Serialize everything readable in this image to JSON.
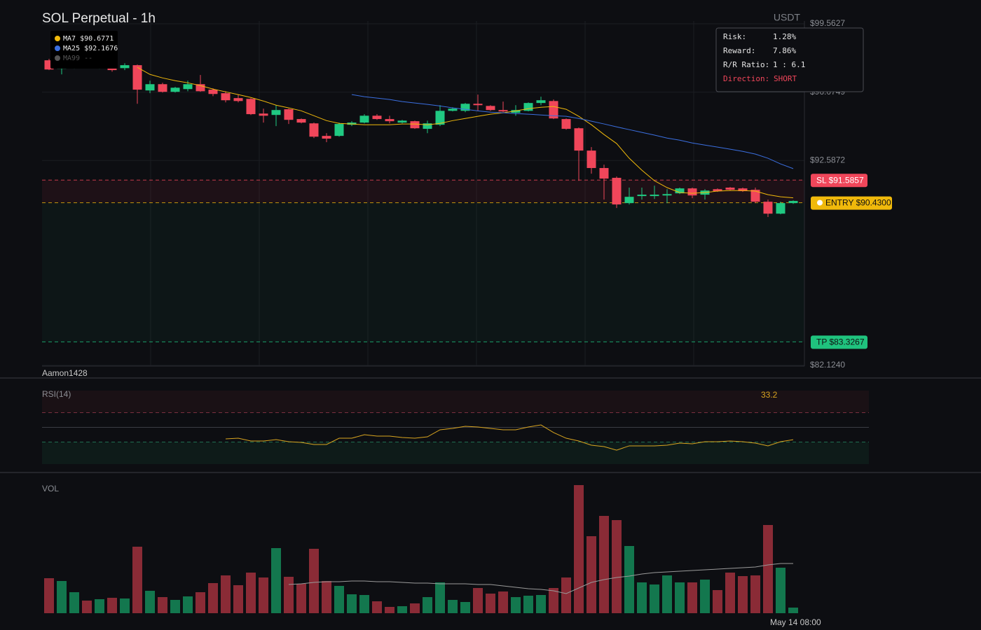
{
  "header": {
    "title": "SOL Perpetual - 1h",
    "currency": "USDT",
    "watermark": "Aamon1428",
    "time_label": "May 14 08:00"
  },
  "legend": [
    {
      "text": "MA7 $90.6771",
      "color": "#f0b90b"
    },
    {
      "text": "MA25 $92.1676",
      "color": "#3b6fe0"
    },
    {
      "text": "MA99 --",
      "color": "#555555"
    }
  ],
  "info": [
    {
      "label": "Risk:",
      "value": "1.28%"
    },
    {
      "label": "Reward:",
      "value": "7.86%"
    },
    {
      "label": "R/R Ratio:",
      "value": "1 : 6.1"
    },
    {
      "label": "Direction:",
      "value": "SHORT"
    }
  ],
  "chart_data": [
    {
      "type": "candlestick",
      "up_color": "#20c982",
      "down_color": "#f0465a",
      "open": [
        97.7,
        97.27,
        97.34,
        97.37,
        97.34,
        97.37,
        97.3,
        97.45,
        96.16,
        96.48,
        96.09,
        96.23,
        96.48,
        96.2,
        96.02,
        95.77,
        95.73,
        94.98,
        94.91,
        95.2,
        94.7,
        94.48,
        93.84,
        93.84,
        94.41,
        94.52,
        94.87,
        94.7,
        94.52,
        94.59,
        94.2,
        94.41,
        95.12,
        95.12,
        95.48,
        95.37,
        95.16,
        95.02,
        95.12,
        95.52,
        95.62,
        94.7,
        94.23,
        93.09,
        92.2,
        91.7,
        90.41,
        90.77,
        90.77,
        90.8,
        90.91,
        91.16,
        90.84,
        91.12,
        91.2,
        91.16,
        91.09,
        90.48,
        89.87,
        90.41
      ],
      "high": [
        97.77,
        97.41,
        97.45,
        97.45,
        97.41,
        97.45,
        97.55,
        97.48,
        96.66,
        96.55,
        96.34,
        96.66,
        96.95,
        96.27,
        96.12,
        95.95,
        95.77,
        95.23,
        95.41,
        95.23,
        94.73,
        94.52,
        93.98,
        94.52,
        94.59,
        94.95,
        94.95,
        94.87,
        94.66,
        94.62,
        94.62,
        95.41,
        95.3,
        95.52,
        95.95,
        95.41,
        95.59,
        95.41,
        95.55,
        95.84,
        95.7,
        94.73,
        94.27,
        93.27,
        92.37,
        91.77,
        91.2,
        91.2,
        91.3,
        91.12,
        91.2,
        91.2,
        91.12,
        91.16,
        91.23,
        91.2,
        91.2,
        90.59,
        90.48,
        90.55
      ],
      "low": [
        97.2,
        96.98,
        97.27,
        97.3,
        97.27,
        97.12,
        97.2,
        95.48,
        96.02,
        96.05,
        96.05,
        96.12,
        96.09,
        95.87,
        95.55,
        95.55,
        94.91,
        94.52,
        94.34,
        94.45,
        94.48,
        93.73,
        93.52,
        93.8,
        94.34,
        94.48,
        94.66,
        94.48,
        94.48,
        94.2,
        93.98,
        94.34,
        95.09,
        95.05,
        95.12,
        95.12,
        95.05,
        94.87,
        95.09,
        95.41,
        94.7,
        94.16,
        91.55,
        91.91,
        90.59,
        90.16,
        90.34,
        90.59,
        90.62,
        90.41,
        90.87,
        90.66,
        90.59,
        90.98,
        91.05,
        90.98,
        90.41,
        89.7,
        89.84,
        90.37
      ],
      "close": [
        97.23,
        97.34,
        97.37,
        97.34,
        97.37,
        97.2,
        97.45,
        96.2,
        96.48,
        96.09,
        96.3,
        96.48,
        96.12,
        95.98,
        95.66,
        95.62,
        94.95,
        94.87,
        95.16,
        94.66,
        94.52,
        93.8,
        93.7,
        94.45,
        94.52,
        94.87,
        94.7,
        94.59,
        94.62,
        94.23,
        94.48,
        95.12,
        95.23,
        95.48,
        95.41,
        95.16,
        95.09,
        95.16,
        95.52,
        95.66,
        94.73,
        94.2,
        93.09,
        92.2,
        91.66,
        90.34,
        90.73,
        90.84,
        90.84,
        90.87,
        91.16,
        90.8,
        91.05,
        91.02,
        91.09,
        91.02,
        90.48,
        89.87,
        90.41,
        90.52
      ],
      "lines": [
        {
          "color": "#f0b90b",
          "values": [
            null,
            null,
            null,
            null,
            null,
            null,
            null,
            97.34,
            96.98,
            96.8,
            96.66,
            96.55,
            96.41,
            96.23,
            96.09,
            95.95,
            95.8,
            95.62,
            95.41,
            95.27,
            95.12,
            94.87,
            94.62,
            94.48,
            94.45,
            94.41,
            94.41,
            94.41,
            94.45,
            94.45,
            94.41,
            94.48,
            94.62,
            94.73,
            94.84,
            94.95,
            95.02,
            95.12,
            95.23,
            95.3,
            95.34,
            95.2,
            94.84,
            94.41,
            93.91,
            93.45,
            92.7,
            92.09,
            91.55,
            91.2,
            90.95,
            90.91,
            90.95,
            91.02,
            91.05,
            91.05,
            91.02,
            90.84,
            90.73,
            90.68
          ]
        },
        {
          "color": "#3b6fe0",
          "values": [
            null,
            null,
            null,
            null,
            null,
            null,
            null,
            null,
            null,
            null,
            null,
            null,
            null,
            null,
            null,
            null,
            null,
            null,
            null,
            null,
            null,
            null,
            null,
            null,
            95.95,
            95.84,
            95.77,
            95.7,
            95.59,
            95.52,
            95.45,
            95.37,
            95.27,
            95.2,
            95.12,
            95.05,
            95.02,
            94.98,
            94.95,
            94.91,
            94.87,
            94.84,
            94.73,
            94.59,
            94.45,
            94.3,
            94.16,
            94.02,
            93.88,
            93.73,
            93.62,
            93.48,
            93.37,
            93.27,
            93.16,
            93.05,
            92.91,
            92.7,
            92.41,
            92.17
          ]
        }
      ],
      "ylim": [
        82.124,
        99.5627
      ],
      "yticks": [
        {
          "value": 99.5627,
          "label": "$99.5627"
        },
        {
          "value": 96.0749,
          "label": "$96.0749"
        },
        {
          "value": 92.5872,
          "label": "$92.5872"
        },
        {
          "value": 82.124,
          "label": "$82.1240"
        }
      ],
      "levels": [
        {
          "label": "SL $91.5857",
          "value": 91.5857,
          "color": "#f0465a"
        },
        {
          "label": "ENTRY $90.4300",
          "value": 90.43,
          "color": "#f0b90b"
        },
        {
          "label": "TP $83.3267",
          "value": 83.3267,
          "color": "#1fc37e"
        }
      ]
    },
    {
      "type": "line",
      "title": "RSI(14)",
      "color": "#d9a520",
      "last_value": 33.2,
      "ylim": [
        0,
        100
      ],
      "levels": [
        70,
        50,
        30
      ],
      "values": [
        null,
        null,
        null,
        null,
        null,
        null,
        null,
        null,
        null,
        null,
        null,
        null,
        null,
        null,
        34.3,
        35.2,
        31.4,
        31.4,
        33.3,
        30.5,
        29.5,
        26.7,
        26.7,
        35.2,
        35.2,
        40.0,
        38.1,
        38.1,
        36.2,
        35.2,
        37.1,
        46.7,
        48.6,
        51.4,
        50.5,
        48.6,
        46.7,
        46.7,
        50.5,
        53.3,
        42.9,
        35.2,
        31.4,
        25.7,
        23.8,
        19.0,
        24.8,
        24.8,
        24.8,
        25.7,
        28.6,
        27.6,
        30.5,
        30.5,
        31.4,
        30.5,
        28.6,
        24.8,
        30.5,
        33.2
      ]
    },
    {
      "type": "bar",
      "title": "VOL",
      "up_color": "#13774e",
      "down_color": "#8a2b36",
      "ma_color": "#9a9a9a",
      "values": [
        50,
        46,
        30,
        18,
        20,
        22,
        21,
        95,
        32,
        23,
        19,
        24,
        30,
        43,
        54,
        40,
        58,
        51,
        93,
        52,
        42,
        92,
        46,
        39,
        27,
        26,
        17,
        9,
        10,
        14,
        23,
        44,
        19,
        16,
        36,
        28,
        31,
        23,
        25,
        26,
        36,
        51,
        183,
        110,
        139,
        133,
        96,
        44,
        41,
        54,
        44,
        44,
        48,
        33,
        58,
        53,
        54,
        126,
        65,
        8
      ],
      "ma": [
        null,
        null,
        null,
        null,
        null,
        null,
        null,
        null,
        null,
        null,
        null,
        null,
        null,
        null,
        null,
        null,
        null,
        null,
        null,
        41,
        42,
        44,
        45,
        45,
        46,
        46,
        45,
        45,
        44,
        43,
        43,
        42,
        42,
        42,
        41,
        41,
        39,
        37,
        35,
        34,
        32,
        28,
        36,
        44,
        48,
        51,
        53,
        56,
        58,
        59,
        60,
        61,
        62,
        63,
        64,
        65,
        66,
        69,
        71,
        71
      ]
    }
  ]
}
